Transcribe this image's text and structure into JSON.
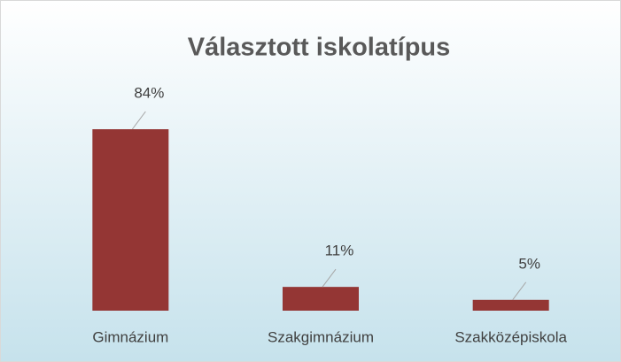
{
  "chart_data": {
    "type": "bar",
    "title": "Választott iskolatípus",
    "categories": [
      "Gimnázium",
      "Szakgimnázium",
      "Szakközépiskola"
    ],
    "values": [
      84,
      11,
      5
    ],
    "value_labels": [
      "84%",
      "11%",
      "5%"
    ],
    "color": "#943634"
  }
}
